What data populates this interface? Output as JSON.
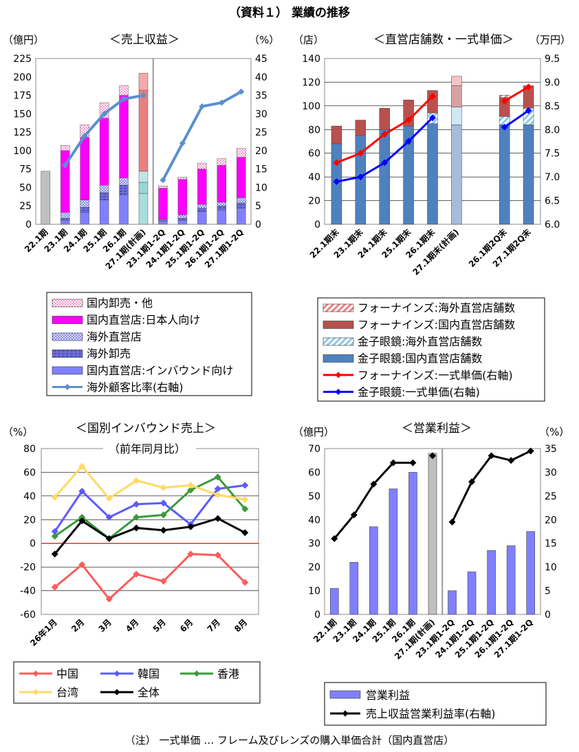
{
  "page_title": "（資料１） 業績の推移",
  "footnote": "（注） 一式単価 … フレーム及びレンズの購入単価合計（国内直営店）",
  "chart_data": [
    {
      "id": "revenue",
      "type": "bar",
      "title": "＜売上収益＞",
      "ylabel_left": "（億円）",
      "ylabel_right": "（%）",
      "ylim_left": [
        0,
        225
      ],
      "ylim_right": [
        0,
        45
      ],
      "yticks_left": [
        "0",
        "25",
        "50",
        "75",
        "100",
        "125",
        "150",
        "175",
        "200",
        "225"
      ],
      "yticks_right": [
        "0",
        "5",
        "10",
        "15",
        "20",
        "25",
        "30",
        "35",
        "40",
        "45"
      ],
      "categories": [
        "22.1期",
        "23.1期",
        "24.1期",
        "25.1期",
        "26.1期",
        "27.1期(計画)",
        "23.1期1-2Q",
        "24.1期1-2Q",
        "25.1期1-2Q",
        "26.1期1-2Q",
        "27.1期1-2Q"
      ],
      "divider_after": "27.1期(計画)",
      "total_only": {
        "name": "",
        "values": [
          72,
          null,
          null,
          null,
          null,
          null,
          null,
          null,
          null,
          null,
          null
        ],
        "color": "#c0c0c0"
      },
      "series": [
        {
          "name": "国内直営店:インバウンド向け",
          "color": "#8080ff",
          "values": [
            null,
            5,
            16,
            33,
            40,
            42,
            4,
            5,
            17,
            19,
            22
          ]
        },
        {
          "name": "海外卸売",
          "color": "#6f6fd8",
          "values": [
            null,
            3,
            7,
            10,
            13,
            15,
            2,
            3,
            5,
            6,
            7
          ]
        },
        {
          "name": "海外直営店",
          "color": "#a8a8ff",
          "values": [
            null,
            8,
            10,
            10,
            10,
            15,
            1,
            5,
            5,
            5,
            7
          ]
        },
        {
          "name": "国内直営店:日本人向け",
          "color": "#ff00ff",
          "values": [
            null,
            84,
            85,
            91,
            112,
            110,
            42,
            48,
            48,
            50,
            55
          ]
        },
        {
          "name": "国内卸売・他",
          "color": "#ff99dd",
          "values": [
            null,
            7,
            17,
            21,
            13,
            23,
            3,
            3,
            8,
            9,
            12
          ]
        }
      ],
      "plan_series_colors": [
        "#99dddd",
        "#99dddd",
        "#99dddd",
        "#e88080",
        "#e88080"
      ],
      "line": {
        "name": "海外顧客比率(右軸)",
        "color": "#5b8fcf",
        "axis": "right",
        "values": [
          null,
          16,
          24,
          30,
          34,
          35,
          12,
          22,
          32,
          33,
          36
        ]
      },
      "legend": [
        "国内卸売・他",
        "国内直営店:日本人向け",
        "海外直営店",
        "海外卸売",
        "国内直営店:インバウンド向け",
        "海外顧客比率(右軸)"
      ]
    },
    {
      "id": "stores",
      "type": "bar",
      "title": "＜直営店舗数・一式単価＞",
      "ylabel_left": "（店）",
      "ylabel_right": "（万円）",
      "ylim_left": [
        0,
        140
      ],
      "ylim_right": [
        6.0,
        9.5
      ],
      "yticks_left": [
        "0",
        "20",
        "40",
        "60",
        "80",
        "100",
        "120",
        "140"
      ],
      "yticks_right": [
        "6.0",
        "6.5",
        "7.0",
        "7.5",
        "8.0",
        "8.5",
        "9.0",
        "9.5"
      ],
      "categories": [
        "22.1期末",
        "23.1期末",
        "24.1期末",
        "25.1期末",
        "26.1期末",
        "27.1期末(計画)",
        "",
        "26.1期2Q末",
        "27.1期2Q末"
      ],
      "series": [
        {
          "name": "金子眼鏡:国内直営店舗数",
          "color": "#4f81bd",
          "values": [
            68,
            75,
            80,
            83,
            85,
            84,
            null,
            84,
            84
          ]
        },
        {
          "name": "金子眼鏡:海外直営店舗数",
          "color": "#bfe0f0",
          "values": [
            0,
            0,
            0,
            0,
            9,
            15,
            null,
            7,
            14
          ]
        },
        {
          "name": "フォーナインズ:国内直営店舗数",
          "color": "#b8514e",
          "values": [
            15,
            13,
            18,
            22,
            19,
            18,
            null,
            16,
            19
          ]
        },
        {
          "name": "フォーナインズ:海外直営店舗数",
          "color": "#f4b0b0",
          "values": [
            0,
            0,
            0,
            0,
            0,
            8,
            null,
            2,
            0
          ]
        }
      ],
      "lines": [
        {
          "name": "フォーナインズ:一式単価(右軸)",
          "color": "#ff0000",
          "axis": "right",
          "segments": [
            [
              7.3,
              7.5,
              7.9,
              8.2,
              8.7
            ],
            [
              8.6,
              8.9
            ]
          ]
        },
        {
          "name": "金子眼鏡:一式単価(右軸)",
          "color": "#0000ff",
          "axis": "right",
          "segments": [
            [
              6.9,
              7.0,
              7.3,
              7.75,
              8.25
            ],
            [
              8.05,
              8.4
            ]
          ]
        }
      ],
      "legend": [
        "フォーナインズ:海外直営店舗数",
        "フォーナインズ:国内直営店舗数",
        "金子眼鏡:海外直営店舗数",
        "金子眼鏡:国内直営店舗数",
        "フォーナインズ:一式単価(右軸)",
        "金子眼鏡:一式単価(右軸)"
      ]
    },
    {
      "id": "inbound",
      "type": "line",
      "title": "＜国別インバウンド売上＞",
      "subtitle": "（前年同月比）",
      "ylabel_left": "（%）",
      "ylim": [
        -60,
        80
      ],
      "yticks": [
        "-60",
        "-40",
        "-20",
        "0",
        "20",
        "40",
        "60",
        "80"
      ],
      "categories": [
        "26年1月",
        "2月",
        "3月",
        "4月",
        "5月",
        "6月",
        "7月",
        "8月"
      ],
      "series": [
        {
          "name": "中国",
          "color": "#ff5b5b",
          "values": [
            -37,
            -18,
            -47,
            -26,
            -32,
            -9,
            -10,
            -33
          ]
        },
        {
          "name": "韓国",
          "color": "#5b5bff",
          "values": [
            10,
            44,
            22,
            33,
            34,
            16,
            46,
            49
          ]
        },
        {
          "name": "香港",
          "color": "#3a9a3a",
          "values": [
            6,
            22,
            4,
            22,
            24,
            45,
            56,
            29
          ]
        },
        {
          "name": "台湾",
          "color": "#ffd966",
          "values": [
            39,
            65,
            38,
            53,
            47,
            49,
            41,
            37
          ]
        },
        {
          "name": "全体",
          "color": "#000000",
          "values": [
            -9,
            19,
            4,
            13,
            11,
            14,
            21,
            9
          ]
        }
      ],
      "legend": [
        "中国",
        "韓国",
        "香港",
        "台湾",
        "全体"
      ]
    },
    {
      "id": "profit",
      "type": "bar",
      "title": "＜営業利益＞",
      "ylabel_left": "（億円）",
      "ylabel_right": "（%）",
      "ylim_left": [
        0,
        70
      ],
      "ylim_right": [
        0,
        35
      ],
      "yticks_left": [
        "0",
        "10",
        "20",
        "30",
        "40",
        "50",
        "60",
        "70"
      ],
      "yticks_right": [
        "0",
        "5",
        "10",
        "15",
        "20",
        "25",
        "30",
        "35"
      ],
      "categories": [
        "22.1期",
        "23.1期",
        "24.1期",
        "25.1期",
        "26.1期",
        "27.1期(計画)",
        "23.1期1-2Q",
        "24.1期1-2Q",
        "25.1期1-2Q",
        "26.1期1-2Q",
        "27.1期1-2Q"
      ],
      "divider_after": "27.1期(計画)",
      "series": [
        {
          "name": "営業利益",
          "color": "#8080ff",
          "values": [
            11,
            22,
            37,
            53,
            60,
            68,
            10,
            18,
            27,
            29,
            35
          ]
        }
      ],
      "plan_color": "#c0c0c0",
      "line": {
        "name": "売上収益営業利益率(右軸)",
        "color": "#000000",
        "axis": "right",
        "values": [
          16,
          21,
          27.5,
          32,
          32,
          33.5,
          19.5,
          28,
          33.5,
          32.5,
          34.5
        ]
      },
      "legend": [
        "営業利益",
        "売上収益営業利益率(右軸)"
      ]
    }
  ]
}
